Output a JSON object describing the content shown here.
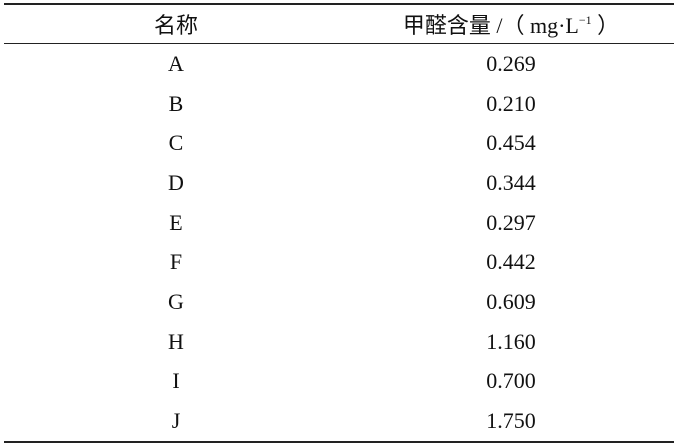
{
  "table": {
    "header": [
      {
        "text": "名称"
      },
      {
        "text": "甲醛含量 /（ mg·L",
        "sup": "−1",
        "tail": " ）"
      }
    ],
    "rows": [
      [
        "A",
        "0.269"
      ],
      [
        "B",
        "0.210"
      ],
      [
        "C",
        "0.454"
      ],
      [
        "D",
        "0.344"
      ],
      [
        "E",
        "0.297"
      ],
      [
        "F",
        "0.442"
      ],
      [
        "G",
        "0.609"
      ],
      [
        "H",
        "1.160"
      ],
      [
        "I",
        "0.700"
      ],
      [
        "J",
        "1.750"
      ]
    ]
  }
}
